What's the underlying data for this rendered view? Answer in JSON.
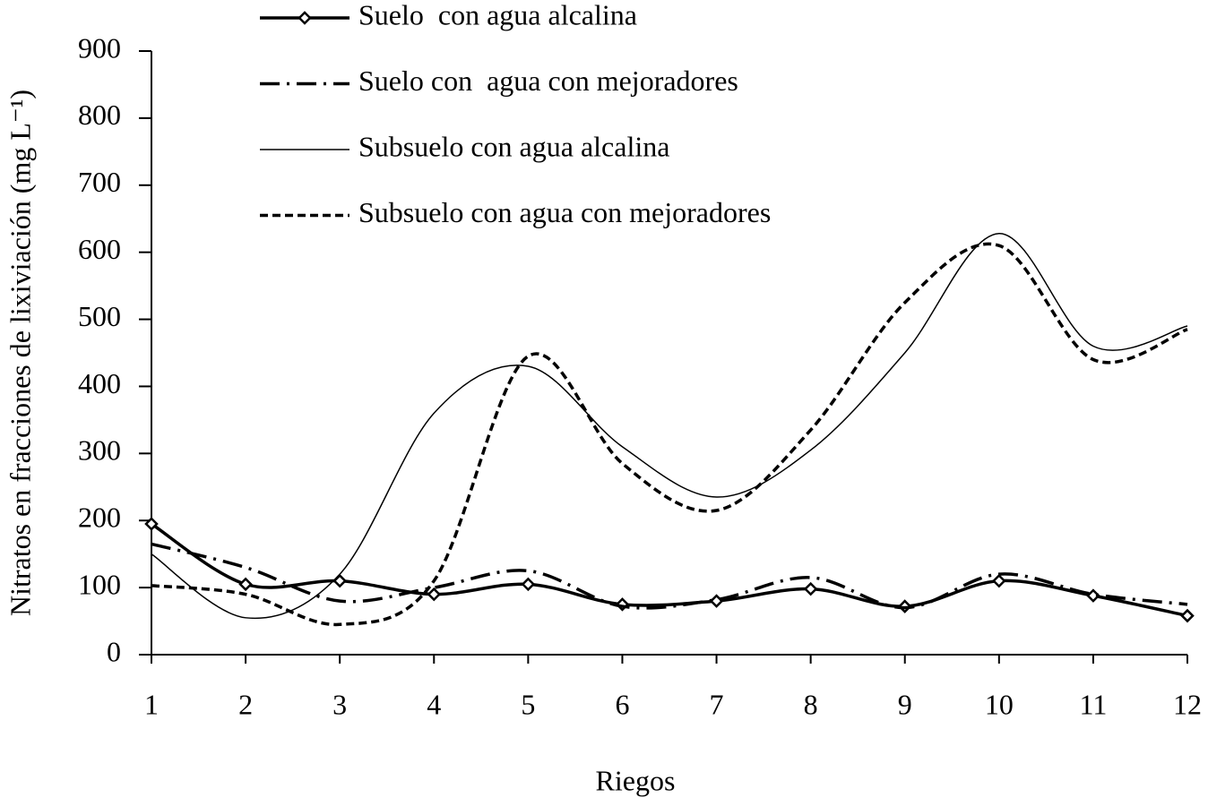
{
  "chart_data": {
    "type": "line",
    "x_label": "Riegos",
    "y_label": "Nitratos en fracciones de lixiviación (mg L⁻¹)",
    "x": [
      1,
      2,
      3,
      4,
      5,
      6,
      7,
      8,
      9,
      10,
      11,
      12
    ],
    "xlim": [
      1,
      12
    ],
    "xticks": [
      1,
      2,
      3,
      4,
      5,
      6,
      7,
      8,
      9,
      10,
      11,
      12
    ],
    "ylim": [
      0,
      900
    ],
    "yticks": [
      0,
      100,
      200,
      300,
      400,
      500,
      600,
      700,
      800,
      900
    ],
    "grid": false,
    "smooth": true,
    "legend": "top",
    "series": [
      {
        "name": "Suelo  con agua alcalina",
        "color": "#000000",
        "dash": "solid",
        "line_width": 3.5,
        "marker": "diamond",
        "values": [
          195,
          105,
          110,
          90,
          105,
          75,
          80,
          98,
          72,
          110,
          88,
          58
        ]
      },
      {
        "name": "Suelo con  agua con mejoradores",
        "color": "#000000",
        "dash": "dash-dot",
        "line_width": 3.5,
        "values": [
          165,
          130,
          80,
          100,
          125,
          72,
          82,
          115,
          70,
          120,
          90,
          75
        ]
      },
      {
        "name": "Subsuelo con agua alcalina",
        "color": "#000000",
        "dash": "solid",
        "line_width": 1.5,
        "values": [
          150,
          55,
          120,
          360,
          430,
          310,
          235,
          305,
          450,
          628,
          460,
          490
        ]
      },
      {
        "name": "Subsuelo con agua con mejoradores",
        "color": "#000000",
        "dash": "dash",
        "line_width": 3.5,
        "values": [
          103,
          90,
          45,
          110,
          445,
          285,
          215,
          335,
          525,
          610,
          440,
          485
        ]
      }
    ]
  }
}
